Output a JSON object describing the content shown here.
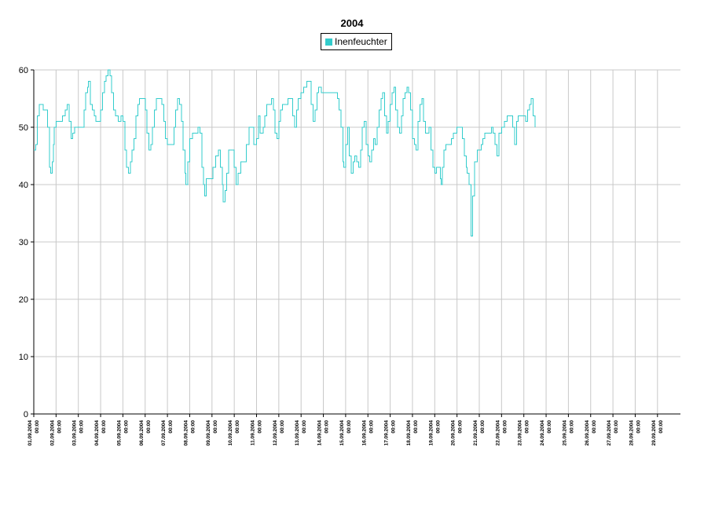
{
  "chart_data": {
    "type": "line",
    "title": "2004",
    "xlabel": "",
    "ylabel": "",
    "ylim": [
      0,
      60
    ],
    "yticks": [
      0,
      10,
      20,
      30,
      40,
      50,
      60
    ],
    "grid": true,
    "legend_position": "top-center",
    "x_tick_labels": [
      {
        "date": "01.09.2004",
        "time": "00:00"
      },
      {
        "date": "02.09.2004",
        "time": "00:00"
      },
      {
        "date": "03.09.2004",
        "time": "00:00"
      },
      {
        "date": "04.09.2004",
        "time": "00:00"
      },
      {
        "date": "05.09.2004",
        "time": "00:00"
      },
      {
        "date": "06.09.2004",
        "time": "00:00"
      },
      {
        "date": "07.09.2004",
        "time": "00:00"
      },
      {
        "date": "08.09.2004",
        "time": "00:00"
      },
      {
        "date": "09.09.2004",
        "time": "00:00"
      },
      {
        "date": "10.09.2004",
        "time": "00:00"
      },
      {
        "date": "11.09.2004",
        "time": "00:00"
      },
      {
        "date": "12.09.2004",
        "time": "00:00"
      },
      {
        "date": "13.09.2004",
        "time": "00:00"
      },
      {
        "date": "14.09.2004",
        "time": "00:00"
      },
      {
        "date": "15.09.2004",
        "time": "00:00"
      },
      {
        "date": "16.09.2004",
        "time": "00:00"
      },
      {
        "date": "17.09.2004",
        "time": "00:00"
      },
      {
        "date": "18.09.2004",
        "time": "00:00"
      },
      {
        "date": "19.09.2004",
        "time": "00:00"
      },
      {
        "date": "20.09.2004",
        "time": "00:00"
      },
      {
        "date": "21.09.2004",
        "time": "00:00"
      },
      {
        "date": "22.09.2004",
        "time": "00:00"
      },
      {
        "date": "23.09.2004",
        "time": "00:00"
      },
      {
        "date": "24.09.2004",
        "time": "00:00"
      },
      {
        "date": "25.09.2004",
        "time": "00:00"
      },
      {
        "date": "26.09.2004",
        "time": "00:00"
      },
      {
        "date": "27.09.2004",
        "time": "00:00"
      },
      {
        "date": "28.09.2004",
        "time": "00:00"
      },
      {
        "date": "29.09.2004",
        "time": "00:00"
      }
    ],
    "series": [
      {
        "name": "Inenfeuchter",
        "color": "#33cccc",
        "points": [
          [
            "2004-09-01 00:00",
            46
          ],
          [
            "2004-09-01 02:00",
            47
          ],
          [
            "2004-09-01 04:00",
            52
          ],
          [
            "2004-09-01 06:00",
            54
          ],
          [
            "2004-09-01 08:00",
            54
          ],
          [
            "2004-09-01 10:00",
            53
          ],
          [
            "2004-09-01 13:00",
            53
          ],
          [
            "2004-09-01 15:00",
            50
          ],
          [
            "2004-09-01 17:00",
            43
          ],
          [
            "2004-09-01 18:00",
            42
          ],
          [
            "2004-09-01 20:00",
            44
          ],
          [
            "2004-09-01 21:00",
            47
          ],
          [
            "2004-09-01 22:00",
            50
          ],
          [
            "2004-09-02 00:00",
            51
          ],
          [
            "2004-09-02 04:00",
            51
          ],
          [
            "2004-09-02 07:00",
            52
          ],
          [
            "2004-09-02 10:00",
            53
          ],
          [
            "2004-09-02 12:00",
            54
          ],
          [
            "2004-09-02 14:00",
            51
          ],
          [
            "2004-09-02 16:00",
            48
          ],
          [
            "2004-09-02 18:00",
            49
          ],
          [
            "2004-09-02 20:00",
            50
          ],
          [
            "2004-09-03 00:00",
            50
          ],
          [
            "2004-09-03 03:00",
            50
          ],
          [
            "2004-09-03 06:00",
            53
          ],
          [
            "2004-09-03 08:00",
            56
          ],
          [
            "2004-09-03 10:00",
            57
          ],
          [
            "2004-09-03 11:00",
            58
          ],
          [
            "2004-09-03 13:00",
            54
          ],
          [
            "2004-09-03 15:00",
            53
          ],
          [
            "2004-09-03 17:00",
            52
          ],
          [
            "2004-09-03 19:00",
            51
          ],
          [
            "2004-09-03 22:00",
            51
          ],
          [
            "2004-09-04 00:00",
            53
          ],
          [
            "2004-09-04 02:00",
            56
          ],
          [
            "2004-09-04 04:00",
            58
          ],
          [
            "2004-09-04 06:00",
            59
          ],
          [
            "2004-09-04 08:00",
            60
          ],
          [
            "2004-09-04 10:00",
            59
          ],
          [
            "2004-09-04 12:00",
            56
          ],
          [
            "2004-09-04 14:00",
            53
          ],
          [
            "2004-09-04 16:00",
            52
          ],
          [
            "2004-09-04 19:00",
            51
          ],
          [
            "2004-09-04 22:00",
            52
          ],
          [
            "2004-09-05 00:00",
            51
          ],
          [
            "2004-09-05 02:00",
            46
          ],
          [
            "2004-09-05 04:00",
            43
          ],
          [
            "2004-09-05 06:00",
            42
          ],
          [
            "2004-09-05 08:00",
            44
          ],
          [
            "2004-09-05 10:00",
            46
          ],
          [
            "2004-09-05 12:00",
            48
          ],
          [
            "2004-09-05 14:00",
            52
          ],
          [
            "2004-09-05 16:00",
            54
          ],
          [
            "2004-09-05 18:00",
            55
          ],
          [
            "2004-09-05 22:00",
            55
          ],
          [
            "2004-09-06 00:00",
            53
          ],
          [
            "2004-09-06 02:00",
            49
          ],
          [
            "2004-09-06 04:00",
            46
          ],
          [
            "2004-09-06 06:00",
            47
          ],
          [
            "2004-09-06 08:00",
            50
          ],
          [
            "2004-09-06 10:00",
            53
          ],
          [
            "2004-09-06 12:00",
            55
          ],
          [
            "2004-09-06 16:00",
            55
          ],
          [
            "2004-09-06 18:00",
            54
          ],
          [
            "2004-09-06 20:00",
            51
          ],
          [
            "2004-09-06 22:00",
            48
          ],
          [
            "2004-09-07 00:00",
            47
          ],
          [
            "2004-09-07 04:00",
            47
          ],
          [
            "2004-09-07 07:00",
            50
          ],
          [
            "2004-09-07 09:00",
            53
          ],
          [
            "2004-09-07 11:00",
            55
          ],
          [
            "2004-09-07 13:00",
            54
          ],
          [
            "2004-09-07 15:00",
            51
          ],
          [
            "2004-09-07 17:00",
            46
          ],
          [
            "2004-09-07 19:00",
            42
          ],
          [
            "2004-09-07 20:00",
            40
          ],
          [
            "2004-09-07 22:00",
            44
          ],
          [
            "2004-09-08 00:00",
            48
          ],
          [
            "2004-09-08 03:00",
            49
          ],
          [
            "2004-09-08 07:00",
            49
          ],
          [
            "2004-09-08 09:00",
            50
          ],
          [
            "2004-09-08 11:00",
            49
          ],
          [
            "2004-09-08 13:00",
            43
          ],
          [
            "2004-09-08 15:00",
            40
          ],
          [
            "2004-09-08 16:00",
            38
          ],
          [
            "2004-09-08 18:00",
            41
          ],
          [
            "2004-09-08 22:00",
            41
          ],
          [
            "2004-09-09 01:00",
            43
          ],
          [
            "2004-09-09 04:00",
            45
          ],
          [
            "2004-09-09 07:00",
            46
          ],
          [
            "2004-09-09 09:00",
            43
          ],
          [
            "2004-09-09 11:00",
            40
          ],
          [
            "2004-09-09 12:00",
            37
          ],
          [
            "2004-09-09 14:00",
            39
          ],
          [
            "2004-09-09 16:00",
            42
          ],
          [
            "2004-09-09 18:00",
            46
          ],
          [
            "2004-09-09 21:00",
            46
          ],
          [
            "2004-09-10 00:00",
            43
          ],
          [
            "2004-09-10 02:00",
            40
          ],
          [
            "2004-09-10 04:00",
            42
          ],
          [
            "2004-09-10 07:00",
            44
          ],
          [
            "2004-09-10 10:00",
            44
          ],
          [
            "2004-09-10 13:00",
            47
          ],
          [
            "2004-09-10 16:00",
            50
          ],
          [
            "2004-09-10 19:00",
            50
          ],
          [
            "2004-09-10 21:00",
            47
          ],
          [
            "2004-09-11 00:00",
            48
          ],
          [
            "2004-09-11 02:00",
            52
          ],
          [
            "2004-09-11 04:00",
            49
          ],
          [
            "2004-09-11 07:00",
            50
          ],
          [
            "2004-09-11 09:00",
            52
          ],
          [
            "2004-09-11 11:00",
            54
          ],
          [
            "2004-09-11 14:00",
            54
          ],
          [
            "2004-09-11 16:00",
            55
          ],
          [
            "2004-09-11 18:00",
            53
          ],
          [
            "2004-09-11 20:00",
            49
          ],
          [
            "2004-09-11 22:00",
            48
          ],
          [
            "2004-09-12 00:00",
            51
          ],
          [
            "2004-09-12 02:00",
            53
          ],
          [
            "2004-09-12 04:00",
            54
          ],
          [
            "2004-09-12 07:00",
            54
          ],
          [
            "2004-09-12 10:00",
            55
          ],
          [
            "2004-09-12 13:00",
            55
          ],
          [
            "2004-09-12 15:00",
            52
          ],
          [
            "2004-09-12 17:00",
            50
          ],
          [
            "2004-09-12 19:00",
            53
          ],
          [
            "2004-09-12 21:00",
            55
          ],
          [
            "2004-09-13 00:00",
            56
          ],
          [
            "2004-09-13 03:00",
            57
          ],
          [
            "2004-09-13 06:00",
            58
          ],
          [
            "2004-09-13 09:00",
            58
          ],
          [
            "2004-09-13 11:00",
            54
          ],
          [
            "2004-09-13 13:00",
            51
          ],
          [
            "2004-09-13 15:00",
            53
          ],
          [
            "2004-09-13 17:00",
            56
          ],
          [
            "2004-09-13 19:00",
            57
          ],
          [
            "2004-09-13 22:00",
            56
          ],
          [
            "2004-09-14 00:00",
            56
          ],
          [
            "2004-09-14 06:00",
            56
          ],
          [
            "2004-09-14 12:00",
            56
          ],
          [
            "2004-09-14 15:00",
            55
          ],
          [
            "2004-09-14 17:00",
            53
          ],
          [
            "2004-09-14 19:00",
            50
          ],
          [
            "2004-09-14 21:00",
            44
          ],
          [
            "2004-09-14 22:00",
            43
          ],
          [
            "2004-09-15 00:00",
            47
          ],
          [
            "2004-09-15 02:00",
            50
          ],
          [
            "2004-09-15 04:00",
            45
          ],
          [
            "2004-09-15 06:00",
            42
          ],
          [
            "2004-09-15 08:00",
            44
          ],
          [
            "2004-09-15 10:00",
            45
          ],
          [
            "2004-09-15 12:00",
            44
          ],
          [
            "2004-09-15 14:00",
            43
          ],
          [
            "2004-09-15 16:00",
            46
          ],
          [
            "2004-09-15 18:00",
            50
          ],
          [
            "2004-09-15 20:00",
            51
          ],
          [
            "2004-09-15 22:00",
            47
          ],
          [
            "2004-09-16 00:00",
            45
          ],
          [
            "2004-09-16 02:00",
            44
          ],
          [
            "2004-09-16 04:00",
            46
          ],
          [
            "2004-09-16 06:00",
            48
          ],
          [
            "2004-09-16 08:00",
            47
          ],
          [
            "2004-09-16 10:00",
            50
          ],
          [
            "2004-09-16 12:00",
            53
          ],
          [
            "2004-09-16 14:00",
            55
          ],
          [
            "2004-09-16 16:00",
            56
          ],
          [
            "2004-09-16 18:00",
            52
          ],
          [
            "2004-09-16 20:00",
            49
          ],
          [
            "2004-09-16 22:00",
            51
          ],
          [
            "2004-09-17 00:00",
            54
          ],
          [
            "2004-09-17 02:00",
            56
          ],
          [
            "2004-09-17 04:00",
            57
          ],
          [
            "2004-09-17 06:00",
            53
          ],
          [
            "2004-09-17 08:00",
            50
          ],
          [
            "2004-09-17 10:00",
            49
          ],
          [
            "2004-09-17 12:00",
            52
          ],
          [
            "2004-09-17 14:00",
            55
          ],
          [
            "2004-09-17 16:00",
            56
          ],
          [
            "2004-09-17 18:00",
            57
          ],
          [
            "2004-09-17 20:00",
            56
          ],
          [
            "2004-09-17 22:00",
            53
          ],
          [
            "2004-09-18 00:00",
            48
          ],
          [
            "2004-09-18 02:00",
            47
          ],
          [
            "2004-09-18 04:00",
            46
          ],
          [
            "2004-09-18 06:00",
            51
          ],
          [
            "2004-09-18 08:00",
            54
          ],
          [
            "2004-09-18 10:00",
            55
          ],
          [
            "2004-09-18 12:00",
            51
          ],
          [
            "2004-09-18 14:00",
            49
          ],
          [
            "2004-09-18 16:00",
            49
          ],
          [
            "2004-09-18 18:00",
            50
          ],
          [
            "2004-09-18 20:00",
            46
          ],
          [
            "2004-09-18 22:00",
            43
          ],
          [
            "2004-09-19 00:00",
            42
          ],
          [
            "2004-09-19 02:00",
            43
          ],
          [
            "2004-09-19 04:00",
            43
          ],
          [
            "2004-09-19 06:00",
            41
          ],
          [
            "2004-09-19 07:00",
            40
          ],
          [
            "2004-09-19 08:00",
            43
          ],
          [
            "2004-09-19 10:00",
            46
          ],
          [
            "2004-09-19 12:00",
            47
          ],
          [
            "2004-09-19 15:00",
            47
          ],
          [
            "2004-09-19 18:00",
            48
          ],
          [
            "2004-09-19 20:00",
            49
          ],
          [
            "2004-09-20 00:00",
            50
          ],
          [
            "2004-09-20 03:00",
            50
          ],
          [
            "2004-09-20 06:00",
            48
          ],
          [
            "2004-09-20 08:00",
            45
          ],
          [
            "2004-09-20 10:00",
            43
          ],
          [
            "2004-09-20 11:00",
            42
          ],
          [
            "2004-09-20 13:00",
            40
          ],
          [
            "2004-09-20 15:00",
            31
          ],
          [
            "2004-09-20 17:00",
            38
          ],
          [
            "2004-09-20 19:00",
            44
          ],
          [
            "2004-09-20 22:00",
            46
          ],
          [
            "2004-09-21 00:00",
            46
          ],
          [
            "2004-09-21 02:00",
            47
          ],
          [
            "2004-09-21 04:00",
            48
          ],
          [
            "2004-09-21 06:00",
            49
          ],
          [
            "2004-09-21 10:00",
            49
          ],
          [
            "2004-09-21 13:00",
            50
          ],
          [
            "2004-09-21 15:00",
            49
          ],
          [
            "2004-09-21 17:00",
            47
          ],
          [
            "2004-09-21 19:00",
            45
          ],
          [
            "2004-09-21 21:00",
            49
          ],
          [
            "2004-09-22 00:00",
            50
          ],
          [
            "2004-09-22 03:00",
            51
          ],
          [
            "2004-09-22 06:00",
            52
          ],
          [
            "2004-09-22 10:00",
            52
          ],
          [
            "2004-09-22 12:00",
            50
          ],
          [
            "2004-09-22 14:00",
            47
          ],
          [
            "2004-09-22 16:00",
            51
          ],
          [
            "2004-09-22 18:00",
            52
          ],
          [
            "2004-09-22 21:00",
            52
          ],
          [
            "2004-09-23 00:00",
            52
          ],
          [
            "2004-09-23 02:00",
            51
          ],
          [
            "2004-09-23 04:00",
            53
          ],
          [
            "2004-09-23 06:00",
            54
          ],
          [
            "2004-09-23 08:00",
            55
          ],
          [
            "2004-09-23 10:00",
            52
          ],
          [
            "2004-09-23 12:00",
            50
          ]
        ]
      }
    ]
  }
}
